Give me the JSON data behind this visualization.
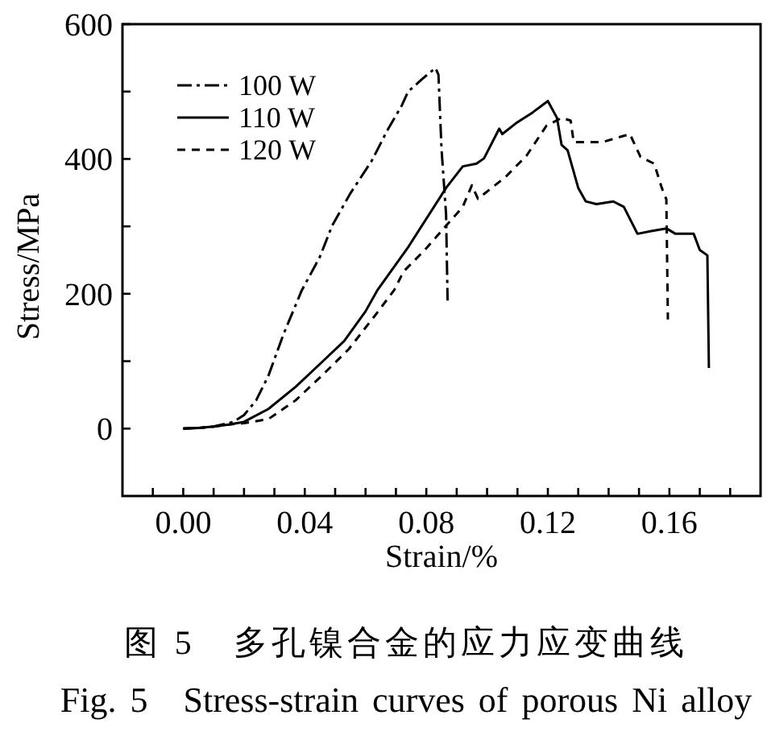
{
  "chart_data": {
    "type": "line",
    "xlabel": "Strain/%",
    "ylabel": "Stress/MPa",
    "annotations": [
      "图 5　多孔镍合金的应力应变曲线",
      "Fig. 5 Stress-strain curves of porous Ni alloy"
    ],
    "xlim": [
      -0.02,
      0.19
    ],
    "ylim": [
      -100,
      600
    ],
    "xticks": [
      {
        "value": -0.01,
        "label": null
      },
      {
        "value": 0,
        "label": "0.00"
      },
      {
        "value": 0.01,
        "label": null
      },
      {
        "value": 0.02,
        "label": null
      },
      {
        "value": 0.03,
        "label": null
      },
      0.04,
      {
        "value": 0.05,
        "label": null
      },
      {
        "value": 0.06,
        "label": null
      },
      {
        "value": 0.07,
        "label": null
      },
      0.08,
      {
        "value": 0.09,
        "label": null
      },
      {
        "value": 0.1,
        "label": null
      },
      {
        "value": 0.11,
        "label": null
      },
      0.12,
      {
        "value": 0.13,
        "label": null
      },
      {
        "value": 0.14,
        "label": null
      },
      {
        "value": 0.15,
        "label": null
      },
      0.16,
      {
        "value": 0.17,
        "label": null
      },
      {
        "value": 0.18,
        "label": null
      }
    ],
    "yticks": [
      0,
      {
        "value": 100,
        "label": null
      },
      200,
      {
        "value": 300,
        "label": null
      },
      400,
      {
        "value": 500,
        "label": null
      },
      600
    ],
    "legend": "top left",
    "marker": "none",
    "series": [
      {
        "name": "100 W",
        "color": "#000000",
        "line_style": "dashdot",
        "x": [
          0,
          0.005,
          0.01,
          0.0165,
          0.02,
          0.024,
          0.028,
          0.033,
          0.039,
          0.045,
          0.049,
          0.055,
          0.062,
          0.067,
          0.072,
          0.074,
          0.079,
          0.083,
          0.084,
          0.085,
          0.0865,
          0.087
        ],
        "values": [
          0,
          1,
          3,
          10,
          20,
          42,
          78,
          140,
          205,
          255,
          301,
          349,
          397,
          441,
          480,
          500,
          520,
          535,
          525,
          415,
          318,
          190
        ]
      },
      {
        "name": "110 W",
        "color": "#000000",
        "line_style": "solid",
        "x": [
          0,
          0.005,
          0.01,
          0.015,
          0.02,
          0.028,
          0.037,
          0.0455,
          0.053,
          0.06,
          0.064,
          0.074,
          0.0865,
          0.092,
          0.0965,
          0.099,
          0.104,
          0.105,
          0.1095,
          0.115,
          0.12,
          0.123,
          0.1245,
          0.1265,
          0.13,
          0.1325,
          0.136,
          0.1415,
          0.145,
          0.1495,
          0.154,
          0.159,
          0.162,
          0.168,
          0.17,
          0.1725,
          0.173
        ],
        "values": [
          0,
          1,
          3,
          6,
          10,
          29,
          62,
          98,
          130,
          174,
          206,
          269,
          357,
          389,
          393,
          401,
          445,
          437,
          453,
          469,
          486,
          461,
          421,
          413,
          357,
          337,
          333,
          337,
          329,
          289,
          293,
          297,
          289,
          289,
          265,
          257,
          90
        ]
      },
      {
        "name": "120 W",
        "color": "#000000",
        "line_style": "dashed",
        "x": [
          0,
          0.005,
          0.01,
          0.015,
          0.02,
          0.028,
          0.037,
          0.0455,
          0.0545,
          0.0635,
          0.0695,
          0.0725,
          0.0795,
          0.0865,
          0.092,
          0.095,
          0.097,
          0.106,
          0.113,
          0.1195,
          0.1245,
          0.1275,
          0.1285,
          0.131,
          0.138,
          0.147,
          0.1505,
          0.155,
          0.1575,
          0.159,
          0.1595
        ],
        "values": [
          0,
          1,
          3,
          6,
          8,
          14,
          42,
          78,
          118,
          170,
          206,
          233,
          265,
          301,
          329,
          361,
          341,
          373,
          405,
          449,
          461,
          457,
          425,
          425,
          425,
          437,
          403,
          393,
          357,
          340,
          162
        ]
      }
    ]
  }
}
